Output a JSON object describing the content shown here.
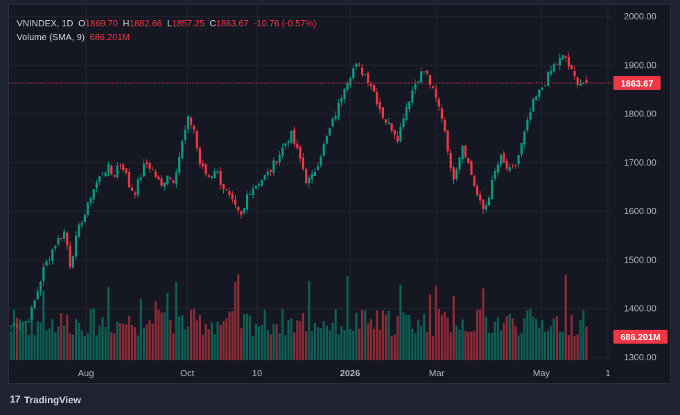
{
  "chart_data": {
    "type": "candlestick",
    "symbol": "VNINDEX",
    "interval": "1D",
    "ohlc": {
      "open": "1869.70",
      "high": "1882.66",
      "low": "1857.25",
      "close": "1863.67",
      "change": "-10.76",
      "change_pct": "(-0.57%)"
    },
    "volume_label": "Volume (SMA, 9)",
    "volume_value": "686.201M",
    "last_price": "1863.67",
    "ylim": [
      1280,
      2010
    ],
    "yticks": [
      "2000.00",
      "1900.00",
      "1800.00",
      "1700.00",
      "1600.00",
      "1500.00",
      "1400.00",
      "1300.00"
    ],
    "xticks": [
      "Aug",
      "Oct",
      "10",
      "2026",
      "Mar",
      "May",
      "1"
    ],
    "close_path": [
      1365,
      1370,
      1372,
      1375,
      1400,
      1440,
      1480,
      1505,
      1530,
      1545,
      1560,
      1490,
      1540,
      1580,
      1600,
      1640,
      1660,
      1680,
      1690,
      1670,
      1700,
      1690,
      1650,
      1640,
      1670,
      1700,
      1690,
      1670,
      1650,
      1680,
      1660,
      1700,
      1750,
      1790,
      1770,
      1700,
      1680,
      1670,
      1690,
      1660,
      1640,
      1620,
      1600,
      1585,
      1640,
      1650,
      1660,
      1670,
      1680,
      1700,
      1720,
      1740,
      1760,
      1730,
      1700,
      1660,
      1670,
      1700,
      1730,
      1760,
      1790,
      1820,
      1860,
      1880,
      1900,
      1890,
      1880,
      1860,
      1830,
      1800,
      1780,
      1770,
      1750,
      1800,
      1830,
      1860,
      1880,
      1890,
      1860,
      1830,
      1800,
      1750,
      1660,
      1700,
      1740,
      1700,
      1660,
      1620,
      1600,
      1640,
      1680,
      1710,
      1690,
      1680,
      1700,
      1740,
      1780,
      1820,
      1840,
      1860,
      1880,
      1900,
      1910,
      1920,
      1890,
      1870,
      1865,
      1863.67
    ],
    "colors": {
      "up": "#089981",
      "down": "#f23645",
      "grid": "#232734",
      "text": "#b2b5be",
      "last_line": "#f23645",
      "price_tag": "#f23645"
    }
  },
  "branding": {
    "name": "TradingView"
  }
}
